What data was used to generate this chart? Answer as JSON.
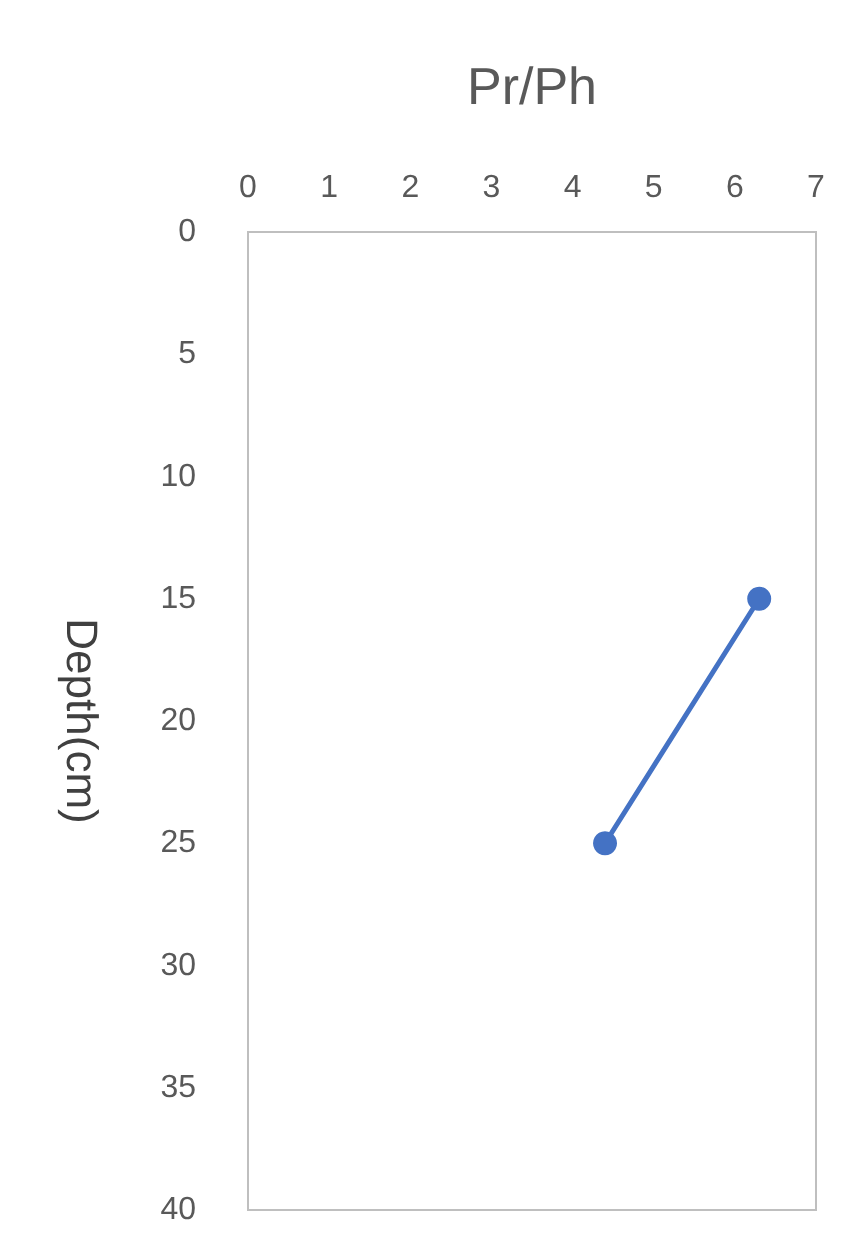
{
  "chart_data": {
    "type": "line",
    "xlabel": "Pr/Ph",
    "ylabel": "Depth(cm)",
    "xlim": [
      0,
      7
    ],
    "xticks": [
      0,
      1,
      2,
      3,
      4,
      5,
      6,
      7
    ],
    "ylim": [
      40,
      0
    ],
    "yticks": [
      0,
      5,
      10,
      15,
      20,
      25,
      30,
      35,
      40
    ],
    "series": [
      {
        "color": "#4472c4",
        "x": [
          6.3,
          4.4
        ],
        "values": [
          15,
          25
        ]
      }
    ],
    "marker": "circle",
    "line_style": "solid",
    "grid": false
  }
}
